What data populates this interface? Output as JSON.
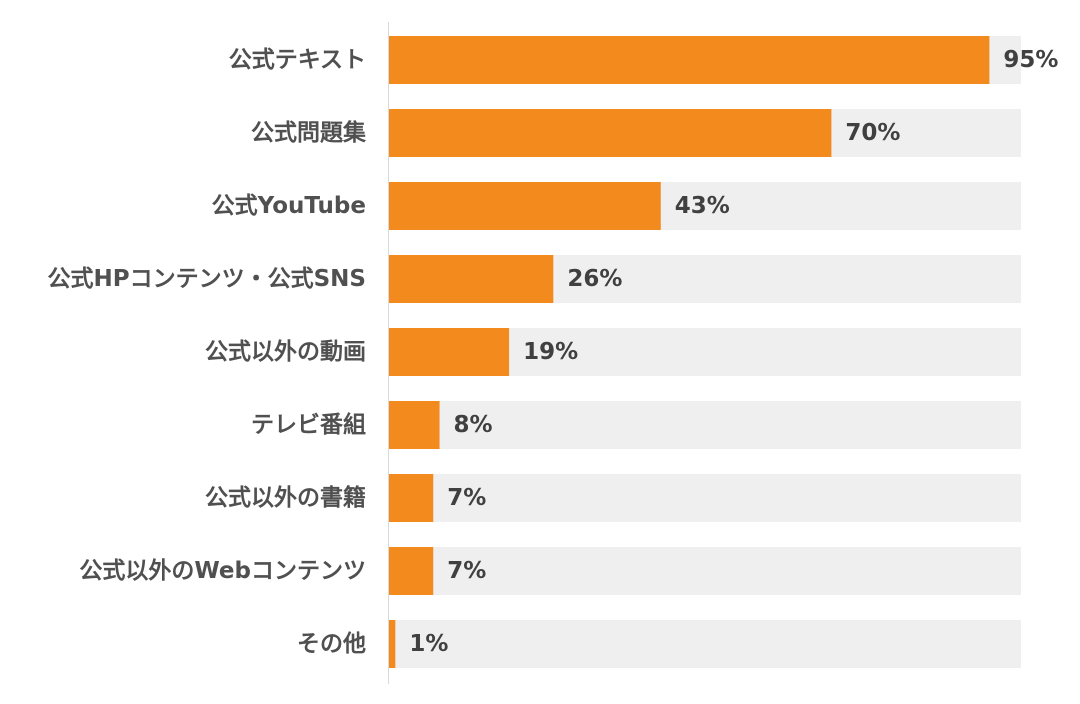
{
  "chart_data": {
    "type": "bar",
    "orientation": "horizontal",
    "title": "",
    "xlabel": "",
    "ylabel": "",
    "xlim": [
      0,
      100
    ],
    "grid": false,
    "legend": "none",
    "value_suffix": "%",
    "categories": [
      "公式テキスト",
      "公式問題集",
      "公式YouTube",
      "公式HPコンテンツ・公式SNS",
      "公式以外の動画",
      "テレビ番組",
      "公式以外の書籍",
      "公式以外のWebコンテンツ",
      "その他"
    ],
    "values": [
      95,
      70,
      43,
      26,
      19,
      8,
      7,
      7,
      1
    ],
    "value_labels": [
      "95%",
      "70%",
      "43%",
      "26%",
      "19%",
      "8%",
      "7%",
      "7%",
      "1%"
    ],
    "colors": {
      "bar": "#F28A1E",
      "track": "#EFEFEF",
      "axis": "#D9D9D9"
    }
  }
}
